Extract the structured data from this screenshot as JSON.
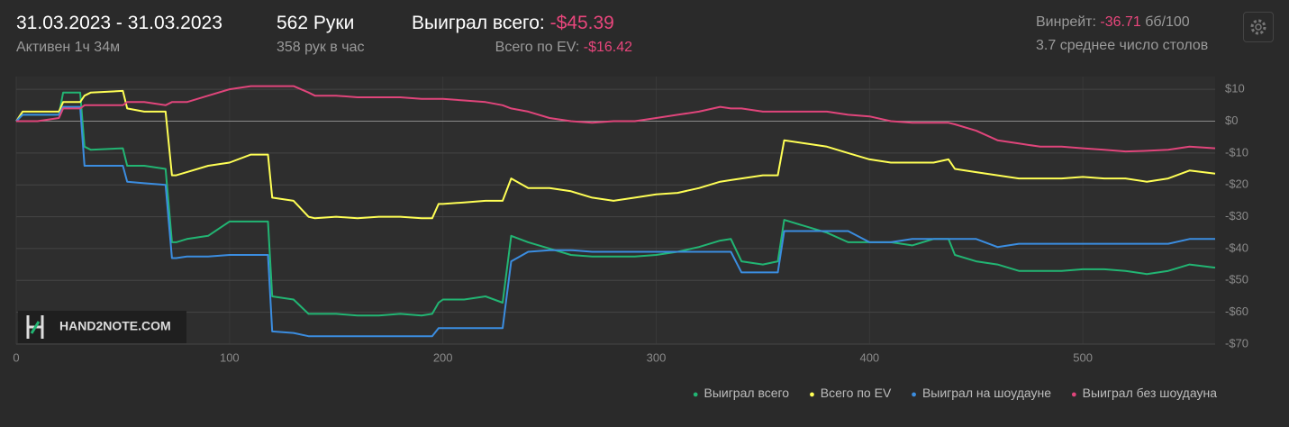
{
  "header": {
    "date_range": "31.03.2023 - 31.03.2023",
    "active": "Активен 1ч 34м",
    "hands": "562 Руки",
    "hands_per_hour": "358 рук в час",
    "won_label": "Выиграл всего:",
    "won_value": "-$45.39",
    "ev_label": "Всего по EV:",
    "ev_value": "-$16.42",
    "winrate_label": "Винрейт:",
    "winrate_value": "-36.71",
    "winrate_unit": "бб/100",
    "avg_tables": "3.7 среднее число столов"
  },
  "watermark": "HAND2NOTE.COM",
  "chart_data": {
    "type": "line",
    "x": [
      0,
      3,
      10,
      20,
      22,
      30,
      32,
      35,
      50,
      52,
      60,
      70,
      73,
      75,
      80,
      90,
      100,
      110,
      118,
      120,
      130,
      137,
      140,
      150,
      160,
      170,
      180,
      190,
      195,
      198,
      200,
      210,
      220,
      228,
      232,
      240,
      250,
      260,
      270,
      280,
      290,
      300,
      310,
      320,
      330,
      335,
      340,
      350,
      357,
      360,
      370,
      380,
      390,
      400,
      410,
      420,
      430,
      437,
      440,
      450,
      460,
      470,
      480,
      490,
      500,
      510,
      520,
      530,
      540,
      550,
      562
    ],
    "series": [
      {
        "name": "Выиграл всего",
        "color": "#22b573",
        "values": [
          0,
          2,
          2,
          2,
          9,
          9,
          -8,
          -9,
          -8.5,
          -14,
          -14,
          -15,
          -38,
          -38,
          -37,
          -36,
          -31.5,
          -31.5,
          -31.5,
          -55,
          -56,
          -60.5,
          -60.5,
          -60.5,
          -61,
          -61,
          -60.5,
          -61,
          -60.5,
          -57,
          -56,
          -56,
          -55,
          -57,
          -36,
          -38,
          -40,
          -42,
          -42.5,
          -42.5,
          -42.5,
          -42,
          -41,
          -39.5,
          -37.5,
          -37,
          -44,
          -45,
          -44,
          -31,
          -33,
          -35,
          -38,
          -38,
          -38,
          -39,
          -37,
          -37,
          -42,
          -44,
          -45,
          -47,
          -47,
          -47,
          -46.5,
          -46.5,
          -47,
          -48,
          -47,
          -45,
          -46
        ]
      },
      {
        "name": "Всего по EV",
        "color": "#ffff55",
        "values": [
          0,
          3,
          3,
          3,
          6,
          6,
          8,
          9,
          9.5,
          4,
          3,
          3,
          -17,
          -17,
          -16,
          -14,
          -13,
          -10.5,
          -10.5,
          -24,
          -25,
          -30,
          -30.5,
          -30,
          -30.5,
          -30,
          -30,
          -30.5,
          -30.5,
          -26,
          -26,
          -25.5,
          -25,
          -25,
          -18,
          -21,
          -21,
          -22,
          -24,
          -25,
          -24,
          -23,
          -22.5,
          -21,
          -19,
          -18.5,
          -18,
          -17,
          -17,
          -6,
          -7,
          -8,
          -10,
          -12,
          -13,
          -13,
          -13,
          -12,
          -15,
          -16,
          -17,
          -18,
          -18,
          -18,
          -17.5,
          -18,
          -18,
          -19,
          -18,
          -15.5,
          -16.5
        ]
      },
      {
        "name": "Выиграл на шоудауне",
        "color": "#3b8de0",
        "values": [
          0,
          2,
          2,
          2,
          4.5,
          4.5,
          -14,
          -14,
          -14,
          -19,
          -19.5,
          -20,
          -43,
          -43,
          -42.5,
          -42.5,
          -42,
          -42,
          -42,
          -66,
          -66.5,
          -67.5,
          -67.5,
          -67.5,
          -67.5,
          -67.5,
          -67.5,
          -67.5,
          -67.5,
          -65,
          -65,
          -65,
          -65,
          -65,
          -44,
          -41,
          -40.5,
          -40.5,
          -41,
          -41,
          -41,
          -41,
          -41,
          -41,
          -41,
          -41,
          -47.5,
          -47.5,
          -47.5,
          -34.5,
          -34.5,
          -34.5,
          -34.5,
          -38,
          -38,
          -37,
          -37,
          -37,
          -37,
          -37,
          -39.5,
          -38.5,
          -38.5,
          -38.5,
          -38.5,
          -38.5,
          -38.5,
          -38.5,
          -38.5,
          -37,
          -37
        ]
      },
      {
        "name": "Выиграл без шоудауна",
        "color": "#e0457b",
        "values": [
          0,
          0,
          0,
          1,
          4,
          4,
          5,
          5,
          5,
          6,
          6,
          5,
          6,
          6,
          6,
          8,
          10,
          11,
          11,
          11,
          11,
          9,
          8,
          8,
          7.5,
          7.5,
          7.5,
          7,
          7,
          7,
          7,
          6.5,
          6,
          5,
          4,
          3,
          1,
          0,
          -0.5,
          0,
          0,
          1,
          2,
          3,
          4.5,
          4,
          4,
          3,
          3,
          3,
          3,
          3,
          2,
          1.5,
          0,
          -0.5,
          -0.5,
          -0.5,
          -1,
          -3,
          -6,
          -7,
          -8,
          -8,
          -8.5,
          -9,
          -9.5,
          -9.3,
          -9,
          -8,
          -8.5
        ]
      }
    ],
    "xlim": [
      0,
      562
    ],
    "xticks": [
      0,
      100,
      200,
      300,
      400,
      500
    ],
    "ylim": [
      -70,
      14
    ],
    "yticks": [
      {
        "value": 10,
        "label": "$10"
      },
      {
        "value": 0,
        "label": "$0"
      },
      {
        "value": -10,
        "label": "-$10"
      },
      {
        "value": -20,
        "label": "-$20"
      },
      {
        "value": -30,
        "label": "-$30"
      },
      {
        "value": -40,
        "label": "-$40"
      },
      {
        "value": -50,
        "label": "-$50"
      },
      {
        "value": -60,
        "label": "-$60"
      },
      {
        "value": -70,
        "label": "-$70"
      }
    ],
    "grid": true,
    "legend": "bottom-right"
  }
}
